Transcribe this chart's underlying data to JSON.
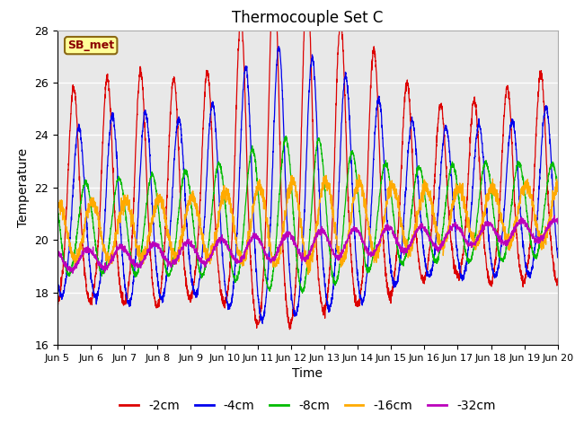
{
  "title": "Thermocouple Set C",
  "xlabel": "Time",
  "ylabel": "Temperature",
  "ylim": [
    16,
    28
  ],
  "yticks": [
    16,
    18,
    20,
    22,
    24,
    26,
    28
  ],
  "xlim": [
    0,
    15
  ],
  "xtick_labels": [
    "Jun 5",
    "Jun 6",
    "Jun 7",
    "Jun 8",
    "Jun 9",
    "Jun 10",
    "Jun 11",
    "Jun 12",
    "Jun 13",
    "Jun 14",
    "Jun 15",
    "Jun 16",
    "Jun 17",
    "Jun 18",
    "Jun 19",
    "Jun 20"
  ],
  "series_colors": [
    "#dd0000",
    "#0000ee",
    "#00bb00",
    "#ffaa00",
    "#bb00bb"
  ],
  "series_labels": [
    "-2cm",
    "-4cm",
    "-8cm",
    "-16cm",
    "-32cm"
  ],
  "annotation_text": "SB_met",
  "background_color": "#e8e8e8",
  "title_fontsize": 12,
  "axis_fontsize": 10,
  "legend_fontsize": 10,
  "n_points": 3000,
  "duration_days": 15
}
